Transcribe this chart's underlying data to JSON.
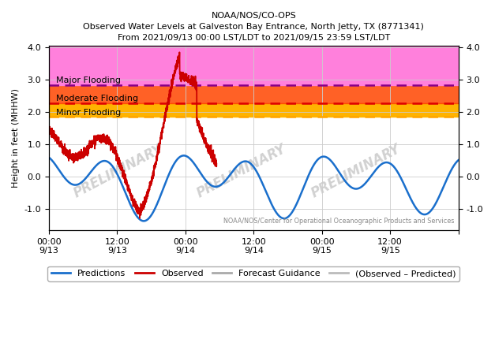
{
  "title_line1": "NOAA/NOS/CO-OPS",
  "title_line2": "Observed Water Levels at Galveston Bay Entrance, North Jetty, TX (8771341)",
  "title_line3": "From 2021/09/13 00:00 LST/LDT to 2021/09/15 23:59 LST/LDT",
  "ylabel": "Height in feet (MHHW)",
  "ylim": [
    -1.65,
    4.05
  ],
  "yticks": [
    -1.0,
    0.0,
    1.0,
    2.0,
    3.0,
    4.0
  ],
  "flood_minor_low": 1.85,
  "flood_minor_high": 2.28,
  "flood_moderate_high": 2.82,
  "flood_major_high": 4.05,
  "color_minor": "#FFB300",
  "color_moderate": "#FF4500",
  "color_major": "#FF80DC",
  "color_minor_line": "#FFA500",
  "color_moderate_line": "#DD0000",
  "color_major_line": "#880088",
  "label_minor": "Minor Flooding",
  "label_moderate": "Moderate Flooding",
  "label_major": "Major Flooding",
  "color_prediction": "#1a6fcc",
  "color_observed": "#CC0000",
  "color_forecast": "#AAAAAA",
  "color_obs_pred": "#BBBBBB",
  "watermark_text": "PRELIMINARY",
  "watermark_color": "#CCCCCC",
  "source_text": "NOAA/NOS/Center for Operational Oceanographic Products and Services",
  "legend_labels": [
    "Predictions",
    "Observed",
    "Forecast Guidance",
    "(Observed – Predicted)"
  ]
}
